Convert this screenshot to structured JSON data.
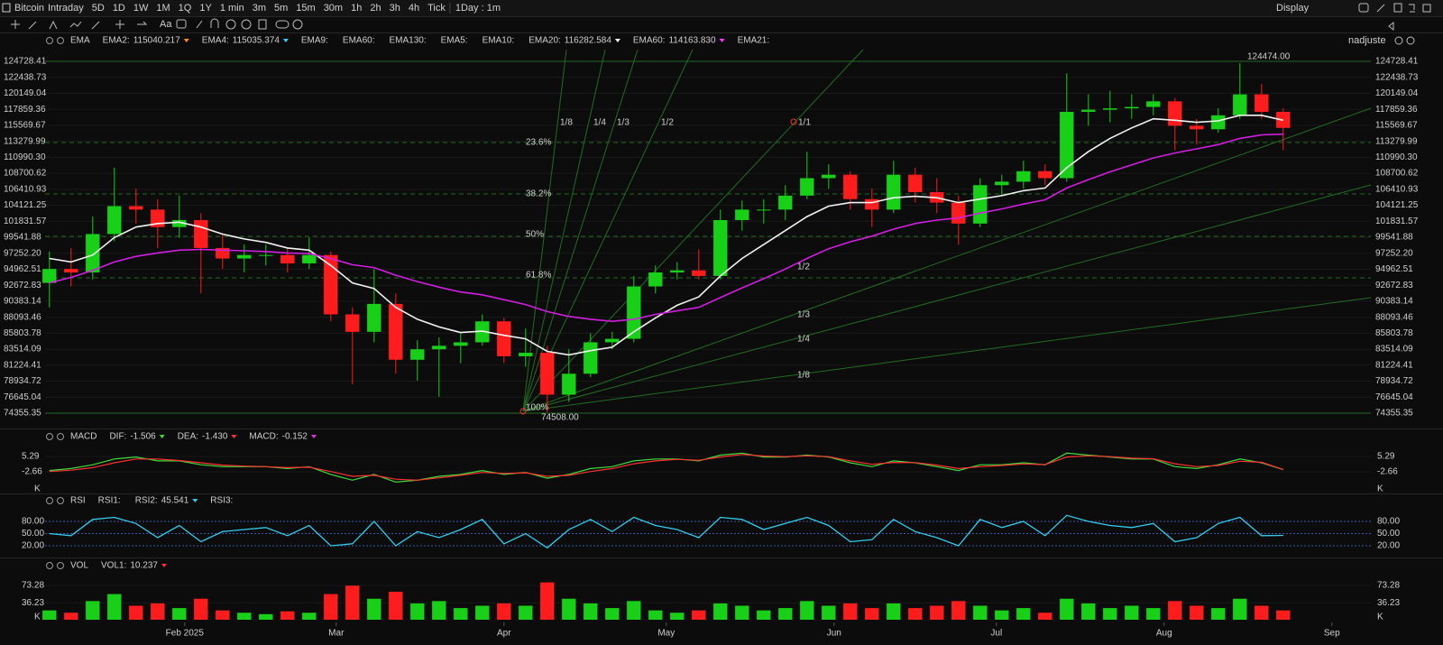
{
  "toolbar": {
    "symbol": "Bitcoin",
    "periods": [
      "Intraday",
      "5D",
      "1D",
      "1W",
      "1M",
      "1Q",
      "1Y",
      "1 min",
      "3m",
      "5m",
      "15m",
      "30m",
      "1h",
      "2h",
      "3h",
      "4h",
      "Tick"
    ],
    "active": 2,
    "active_color": "#ff3030",
    "interval": "1Day : 1m",
    "display": "Display",
    "font_button": "Aa",
    "adjust": "nadjuste"
  },
  "ema_legend": {
    "name": "EMA",
    "items": [
      {
        "label": "EMA2:",
        "value": "115040.217",
        "color": "#ff8c1a"
      },
      {
        "label": "EMA4:",
        "value": "115035.374",
        "color": "#33ccff"
      },
      {
        "label": "EMA9:",
        "color": "#ff33ff"
      },
      {
        "label": "EMA60:",
        "color": "#3399ff"
      },
      {
        "label": "EMA130:",
        "color": "#33cc66"
      },
      {
        "label": "EMA5:",
        "color": "#ff3333"
      },
      {
        "label": "EMA10:",
        "color": "#33dddd"
      },
      {
        "label": "EMA20:",
        "value": "116282.584",
        "color": "#ffffff"
      },
      {
        "label": "EMA60:",
        "value": "114163.830",
        "color": "#ff33ff"
      },
      {
        "label": "EMA21:",
        "color": "#cccc33"
      }
    ]
  },
  "chart": {
    "type": "candlestick",
    "up_color": "#17d017",
    "down_color": "#ff1c1c",
    "xlim": [
      -0.2,
      61.05
    ],
    "ylim": [
      72805,
      127053
    ],
    "grid": true,
    "xticks": [
      {
        "value": 6.25,
        "label": "Feb 2025"
      },
      {
        "value": 13.25,
        "label": "Mar"
      },
      {
        "value": 21,
        "label": "Apr"
      },
      {
        "value": 28.5,
        "label": "May"
      },
      {
        "value": 36.25,
        "label": "Jun"
      },
      {
        "value": 43.75,
        "label": "Jul"
      },
      {
        "value": 51.5,
        "label": "Aug"
      },
      {
        "value": 59.25,
        "label": "Sep"
      }
    ],
    "yticks": [
      124728.41,
      122438.73,
      120149.04,
      117859.36,
      115569.67,
      113279.99,
      {
        "value": 110990.3,
        "label": "110990.30"
      },
      108700.62,
      106410.93,
      104121.25,
      101831.57,
      99541.88,
      97252.2,
      94962.51,
      92672.83,
      90383.14,
      88093.46,
      85803.78,
      83514.09,
      81224.41,
      78934.72,
      76645.04,
      74355.35
    ],
    "ytick_labels": [
      "124728.41",
      "122438.73",
      "120149.04",
      "117859.36",
      "115569.67",
      "113279.99",
      "110990.30",
      "108700.62",
      "106410.93",
      "104121.25",
      "101831.57",
      "99541.88",
      "97252.20",
      "94962.51",
      "92672.83",
      "90383.14",
      "88093.46",
      "85803.78",
      "83514.09",
      "81224.41",
      "78934.72",
      "76645.04",
      "74355.35"
    ],
    "candles": {
      "open": [
        93000,
        95000,
        94500,
        100000,
        104000,
        103500,
        101000,
        102000,
        98000,
        96500,
        97000,
        97000,
        95800,
        97000,
        88500,
        86000,
        90000,
        82000,
        83500,
        84000,
        84500,
        87500,
        82500,
        83000,
        77000,
        80000,
        84500,
        85000,
        92500,
        94500,
        94800,
        94000,
        102000,
        103500,
        103500,
        105500,
        108000,
        108500,
        105000,
        103500,
        108500,
        106000,
        104500,
        101500,
        107000,
        107500,
        109000,
        108000,
        117500,
        117800,
        118000,
        118200,
        119000,
        115500,
        115000,
        117000,
        120000,
        117500
      ],
      "high": [
        97500,
        98000,
        102500,
        109500,
        106500,
        105000,
        105500,
        103000,
        100000,
        98500,
        98500,
        98000,
        99500,
        97500,
        89500,
        95000,
        91500,
        84800,
        85200,
        86000,
        88500,
        88000,
        86500,
        84000,
        83500,
        85800,
        86000,
        94000,
        95500,
        96000,
        97800,
        103500,
        104800,
        105000,
        107000,
        111800,
        110000,
        109000,
        106500,
        110500,
        109500,
        108000,
        105500,
        108000,
        108500,
        110500,
        110000,
        123000,
        120000,
        120500,
        120000,
        120000,
        119500,
        116500,
        118000,
        124474,
        121500,
        118000
      ],
      "low": [
        89500,
        92500,
        93500,
        99000,
        101500,
        98000,
        99500,
        91500,
        95000,
        94500,
        95500,
        94500,
        95000,
        87500,
        78500,
        84500,
        80000,
        79000,
        76700,
        81500,
        84000,
        81500,
        81000,
        74508,
        76000,
        79500,
        83500,
        84500,
        91500,
        93500,
        93500,
        93500,
        100500,
        101500,
        102000,
        105000,
        106500,
        103500,
        101000,
        103000,
        104500,
        103000,
        98500,
        101000,
        105500,
        106500,
        107000,
        107500,
        115500,
        116000,
        116500,
        117000,
        112000,
        112800,
        114500,
        116500,
        116500,
        112000
      ],
      "close": [
        95000,
        94500,
        100000,
        104000,
        103500,
        101000,
        102000,
        98000,
        96500,
        97000,
        97000,
        95800,
        97000,
        88500,
        86000,
        90000,
        82000,
        83500,
        84000,
        84500,
        87500,
        82500,
        83000,
        77000,
        80000,
        84500,
        85000,
        92500,
        94500,
        94800,
        94000,
        102000,
        103500,
        103500,
        105500,
        108000,
        108500,
        105000,
        103500,
        108500,
        106000,
        104500,
        101500,
        107000,
        107500,
        109000,
        108000,
        117500,
        117800,
        118000,
        118200,
        119000,
        115500,
        115000,
        117000,
        120000,
        117500,
        115200
      ]
    },
    "ema_lines": [
      {
        "color": "#f2f2f2",
        "values": [
          96500,
          96000,
          97000,
          99500,
          101000,
          101500,
          101700,
          101000,
          100000,
          99300,
          98800,
          98000,
          97700,
          95500,
          93000,
          92200,
          89500,
          87800,
          86700,
          85900,
          86100,
          85500,
          85000,
          83200,
          82700,
          83300,
          83800,
          86000,
          88000,
          89800,
          91000,
          94000,
          96500,
          98500,
          100500,
          102500,
          104000,
          104500,
          104500,
          105200,
          105400,
          105200,
          104500,
          105000,
          105500,
          106200,
          106600,
          109500,
          111800,
          113700,
          115200,
          116500,
          116300,
          116000,
          116200,
          117000,
          117000,
          116300
        ]
      },
      {
        "color": "#d21ee0",
        "values": [
          93000,
          93800,
          94800,
          96000,
          96800,
          97300,
          97700,
          97800,
          97700,
          97600,
          97500,
          97300,
          97200,
          96500,
          95600,
          95200,
          94100,
          93200,
          92400,
          91700,
          91300,
          90600,
          89900,
          88900,
          88200,
          87800,
          87500,
          87800,
          88500,
          89000,
          89500,
          90900,
          92300,
          93600,
          95000,
          96500,
          97900,
          98900,
          99700,
          100700,
          101500,
          102000,
          102300,
          103000,
          103600,
          104300,
          104900,
          106600,
          107800,
          108900,
          109900,
          110900,
          111600,
          112200,
          112800,
          113700,
          114200,
          114300
        ]
      }
    ],
    "high_label": "124474.00",
    "low_label": "74508.00",
    "fib_labels": [
      "23.6%",
      "38.2%",
      "50%",
      "61.8%",
      "100%"
    ],
    "fan_labels": [
      "1/8",
      "1/4",
      "1/3",
      "1/2",
      "1/1",
      "1/2",
      "1/3",
      "1/4",
      "1/8"
    ]
  },
  "macd": {
    "name": "MACD",
    "items": [
      {
        "label": "DIF:",
        "value": "-1.506",
        "color": "#3ddc3d"
      },
      {
        "label": "DEA:",
        "value": "-1.430",
        "color": "#ff3030"
      },
      {
        "label": "MACD:",
        "value": "-0.152",
        "color": "#e030e0"
      }
    ],
    "ylim": [
      -12.95,
      10.43
    ],
    "yticks": [
      5.29,
      -2.66
    ],
    "unit": "K",
    "dif": [
      -2,
      -1,
      1,
      4,
      5,
      3,
      3,
      1,
      0,
      0,
      0,
      -1,
      0,
      -4,
      -7,
      -4,
      -8,
      -7,
      -5,
      -4,
      -2,
      -4,
      -3,
      -6,
      -4,
      -1,
      0,
      3,
      4,
      4,
      3,
      6,
      7,
      5,
      5,
      6,
      5,
      2,
      0,
      3,
      2,
      0,
      -2,
      1,
      1,
      2,
      1,
      7,
      6,
      5,
      4,
      4,
      0,
      -1,
      1,
      4,
      2,
      -1.5
    ],
    "dea": [
      -2.5,
      -1.8,
      -0.5,
      2,
      4,
      4,
      3.2,
      2,
      0.8,
      0.3,
      0,
      -0.5,
      -0.3,
      -2.5,
      -5,
      -4.5,
      -6.5,
      -7,
      -5.8,
      -4.5,
      -3,
      -3.5,
      -3.2,
      -5,
      -4.5,
      -2.5,
      -1,
      1.5,
      3,
      3.8,
      3.3,
      5,
      6.3,
      5.5,
      5.2,
      5.6,
      5.2,
      3,
      1.2,
      2.2,
      2.1,
      0.8,
      -1,
      0,
      0.6,
      1.4,
      1.1,
      5,
      5.6,
      5.2,
      4.4,
      4.1,
      1.5,
      0,
      0.6,
      2.8,
      2.3,
      -1.43
    ]
  },
  "rsi": {
    "name": "RSI",
    "items": [
      {
        "label": "RSI1:",
        "color": "#ff3030"
      },
      {
        "label": "RSI2:",
        "value": "45.541",
        "color": "#33ccee"
      },
      {
        "label": "RSI3:",
        "color": "#bbbbbb"
      }
    ],
    "ylim": [
      0,
      100
    ],
    "yticks": [
      {
        "value": 80,
        "label": "80.00"
      },
      {
        "value": 50,
        "label": "50.00"
      },
      {
        "value": 20,
        "label": "20.00"
      }
    ],
    "values": [
      50,
      45,
      85,
      90,
      75,
      40,
      70,
      30,
      55,
      60,
      65,
      45,
      70,
      20,
      25,
      80,
      20,
      55,
      40,
      60,
      85,
      25,
      50,
      15,
      60,
      85,
      55,
      90,
      70,
      60,
      40,
      90,
      85,
      60,
      75,
      90,
      70,
      30,
      35,
      85,
      55,
      40,
      20,
      85,
      65,
      80,
      45,
      95,
      80,
      70,
      65,
      75,
      30,
      40,
      75,
      90,
      45,
      45.5
    ]
  },
  "volume": {
    "name": "VOL",
    "items": [
      {
        "label": "VOL1:",
        "value": "10.237",
        "color": "#ff3030"
      }
    ],
    "ylim": [
      0,
      90.8
    ],
    "yticks": [
      73.28,
      36.23
    ],
    "unit": "K",
    "values": [
      20,
      15,
      40,
      55,
      30,
      35,
      25,
      45,
      20,
      15,
      12,
      18,
      15,
      55,
      73,
      45,
      60,
      35,
      40,
      25,
      30,
      35,
      30,
      80,
      45,
      35,
      25,
      40,
      20,
      15,
      20,
      35,
      30,
      20,
      25,
      40,
      30,
      35,
      25,
      35,
      25,
      30,
      40,
      30,
      20,
      25,
      15,
      45,
      35,
      25,
      30,
      25,
      40,
      30,
      25,
      45,
      30,
      20
    ]
  }
}
